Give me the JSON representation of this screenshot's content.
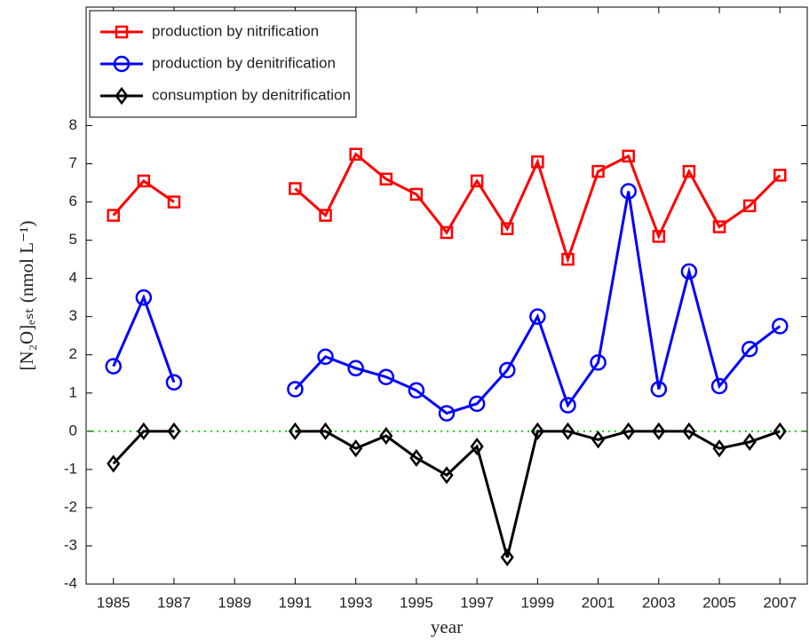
{
  "chart_data": {
    "type": "line",
    "x_label": "year",
    "y_label": "[N₂O]ₑₛₜ (nmol L⁻¹)",
    "x": [
      1985,
      1986,
      1987,
      1988,
      1989,
      1990,
      1991,
      1992,
      1993,
      1994,
      1995,
      1996,
      1997,
      1998,
      1999,
      2000,
      2001,
      2002,
      2003,
      2004,
      2005,
      2006,
      2007
    ],
    "series": [
      {
        "name": "production by nitrification",
        "color": "#ff0000",
        "marker": "square",
        "values": [
          5.65,
          6.55,
          6.0,
          null,
          null,
          null,
          6.35,
          5.65,
          7.25,
          6.6,
          6.2,
          5.2,
          6.55,
          5.3,
          7.05,
          4.5,
          6.8,
          7.2,
          5.1,
          6.8,
          5.35,
          5.9,
          6.7
        ]
      },
      {
        "name": "production by denitrification",
        "color": "#0000ff",
        "marker": "circle",
        "values": [
          1.7,
          3.5,
          1.28,
          null,
          null,
          null,
          1.1,
          1.95,
          1.65,
          1.42,
          1.07,
          0.47,
          0.72,
          1.6,
          3.0,
          0.68,
          1.8,
          6.28,
          1.1,
          4.18,
          1.18,
          2.15,
          2.75
        ]
      },
      {
        "name": "consumption by denitrification",
        "color": "#000000",
        "marker": "diamond",
        "values": [
          -0.85,
          0,
          0,
          null,
          null,
          null,
          0,
          0,
          -0.45,
          -0.12,
          -0.7,
          -1.15,
          -0.4,
          -3.3,
          0,
          0,
          -0.22,
          0,
          0,
          0,
          -0.45,
          -0.28,
          0
        ]
      }
    ],
    "xlim": [
      1984.1,
      2007.9
    ],
    "xticks": [
      1985,
      1987,
      1989,
      1991,
      1993,
      1995,
      1997,
      1999,
      2001,
      2003,
      2005,
      2007
    ],
    "ylim": [
      -4,
      11.1
    ],
    "yticks": [
      -4,
      -3,
      -2,
      -1,
      0,
      1,
      2,
      3,
      4,
      5,
      6,
      7,
      8
    ],
    "reference_line": {
      "value": 0,
      "color": "#00dd00"
    },
    "legend": "top-left",
    "grid": false
  }
}
